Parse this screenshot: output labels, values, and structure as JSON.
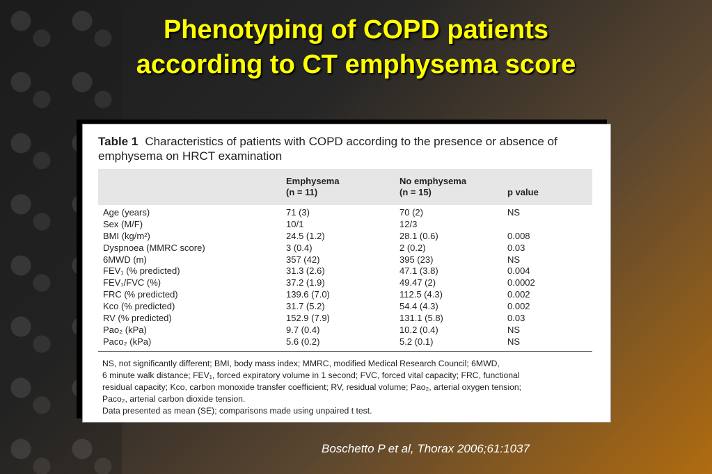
{
  "title": {
    "line1": "Phenotyping of COPD patients",
    "line2": "according to CT emphysema score"
  },
  "table": {
    "label": "Table 1",
    "caption": "Characteristics of patients with COPD according to the presence or absence of emphysema on HRCT examination",
    "headers": {
      "col1_line1": "Emphysema",
      "col1_line2": "(n = 11)",
      "col2_line1": "No emphysema",
      "col2_line2": "(n = 15)",
      "col3": "p value"
    },
    "rows": [
      {
        "label": "Age (years)",
        "emph": "71 (3)",
        "noemph": "70 (2)",
        "p": "NS"
      },
      {
        "label": "Sex (M/F)",
        "emph": "10/1",
        "noemph": "12/3",
        "p": ""
      },
      {
        "label": "BMI (kg/m²)",
        "emph": "24.5 (1.2)",
        "noemph": "28.1 (0.6)",
        "p": "0.008"
      },
      {
        "label": "Dyspnoea (MMRC score)",
        "emph": "3 (0.4)",
        "noemph": "2 (0.2)",
        "p": "0.03"
      },
      {
        "label": "6MWD (m)",
        "emph": "357 (42)",
        "noemph": "395 (23)",
        "p": "NS"
      },
      {
        "label": "FEV₁ (% predicted)",
        "emph": "31.3 (2.6)",
        "noemph": "47.1 (3.8)",
        "p": "0.004"
      },
      {
        "label": "FEV₁/FVC (%)",
        "emph": "37.2 (1.9)",
        "noemph": "49.47 (2)",
        "p": "0.0002"
      },
      {
        "label": "FRC (% predicted)",
        "emph": "139.6 (7.0)",
        "noemph": "112.5 (4.3)",
        "p": "0.002"
      },
      {
        "label": "Kco (% predicted)",
        "emph": "31.7 (5.2)",
        "noemph": "54.4 (4.3)",
        "p": "0.002"
      },
      {
        "label": "RV (% predicted)",
        "emph": "152.9 (7.9)",
        "noemph": "131.1 (5.8)",
        "p": "0.03"
      },
      {
        "label": "Pao₂ (kPa)",
        "emph": "9.7 (0.4)",
        "noemph": "10.2 (0.4)",
        "p": "NS"
      },
      {
        "label": "Paco₂ (kPa)",
        "emph": "5.6 (0.2)",
        "noemph": "5.2 (0.1)",
        "p": "NS"
      }
    ],
    "footnotes": [
      "NS, not significantly different; BMI, body mass index; MMRC, modified Medical Research Council; 6MWD,",
      "6 minute walk distance; FEV₁, forced expiratory volume in 1 second; FVC, forced vital capacity; FRC, functional",
      "residual capacity; Kco, carbon monoxide transfer coefficient; RV, residual volume; Pao₂, arterial oxygen tension;",
      "Paco₂, arterial carbon dioxide tension.",
      "Data presented as mean (SE); comparisons made using unpaired t test."
    ]
  },
  "citation": "Boschetto P et al, Thorax 2006;61:1037",
  "colors": {
    "title": "#ffff00",
    "accent_orange": "#b06c10"
  }
}
